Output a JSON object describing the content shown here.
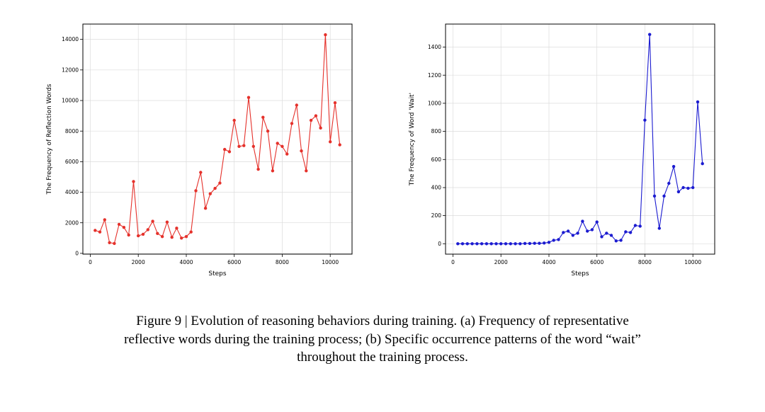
{
  "figure": {
    "caption_line1": "Figure 9 | Evolution of reasoning behaviors during training. (a) Frequency of representative",
    "caption_line2": "reflective words during the training process; (b) Specific occurrence patterns of the word “wait”",
    "caption_line3": "throughout the training process."
  },
  "chart_data": [
    {
      "type": "line",
      "name": "frequency-of-reflection-words",
      "color": "#e5312b",
      "xlabel": "Steps",
      "ylabel": "The Frequency of Reflection Words",
      "xlim": [
        -310,
        10910
      ],
      "ylim": [
        -50,
        15000
      ],
      "xticks": [
        0,
        2000,
        4000,
        6000,
        8000,
        10000
      ],
      "yticks": [
        0,
        2000,
        4000,
        6000,
        8000,
        10000,
        12000,
        14000
      ],
      "grid": true,
      "legend": "none",
      "x": [
        200,
        400,
        600,
        800,
        1000,
        1200,
        1400,
        1600,
        1800,
        2000,
        2200,
        2400,
        2600,
        2800,
        3000,
        3200,
        3400,
        3600,
        3800,
        4000,
        4200,
        4400,
        4600,
        4800,
        5000,
        5200,
        5400,
        5600,
        5800,
        6000,
        6200,
        6400,
        6600,
        6800,
        7000,
        7200,
        7400,
        7600,
        7800,
        8000,
        8200,
        8400,
        8600,
        8800,
        9000,
        9200,
        9400,
        9600,
        9800,
        10000,
        10200,
        10400
      ],
      "values": [
        1500,
        1400,
        2200,
        700,
        650,
        1900,
        1700,
        1200,
        4700,
        1150,
        1250,
        1550,
        2100,
        1300,
        1100,
        2050,
        1050,
        1650,
        1000,
        1100,
        1400,
        4100,
        5300,
        2950,
        3900,
        4250,
        4600,
        6800,
        6650,
        8700,
        7000,
        7050,
        10200,
        7000,
        5500,
        8900,
        8000,
        5400,
        7200,
        7000,
        6500,
        8500,
        9700,
        6700,
        5400,
        8700,
        9000,
        8200,
        14300,
        7300,
        9850,
        7100
      ]
    },
    {
      "type": "line",
      "name": "frequency-of-word-wait",
      "color": "#1b1bd0",
      "xlabel": "Steps",
      "ylabel": "The Frequency of Word 'Wait'",
      "xlim": [
        -310,
        10910
      ],
      "ylim": [
        -74,
        1564
      ],
      "xticks": [
        0,
        2000,
        4000,
        6000,
        8000,
        10000
      ],
      "yticks": [
        0,
        200,
        400,
        600,
        800,
        1000,
        1200,
        1400
      ],
      "grid": true,
      "legend": "none",
      "x": [
        200,
        400,
        600,
        800,
        1000,
        1200,
        1400,
        1600,
        1800,
        2000,
        2200,
        2400,
        2600,
        2800,
        3000,
        3200,
        3400,
        3600,
        3800,
        4000,
        4200,
        4400,
        4600,
        4800,
        5000,
        5200,
        5400,
        5600,
        5800,
        6000,
        6200,
        6400,
        6600,
        6800,
        7000,
        7200,
        7400,
        7600,
        7800,
        8000,
        8200,
        8400,
        8600,
        8800,
        9000,
        9200,
        9400,
        9600,
        9800,
        10000,
        10200,
        10400
      ],
      "values": [
        0,
        0,
        0,
        0,
        0,
        0,
        0,
        0,
        0,
        0,
        0,
        0,
        0,
        0,
        2,
        2,
        3,
        3,
        5,
        10,
        25,
        30,
        80,
        90,
        60,
        75,
        160,
        90,
        100,
        155,
        50,
        75,
        60,
        20,
        25,
        85,
        80,
        130,
        125,
        880,
        1490,
        340,
        110,
        340,
        430,
        550,
        370,
        400,
        395,
        400,
        1010,
        570
      ]
    }
  ]
}
